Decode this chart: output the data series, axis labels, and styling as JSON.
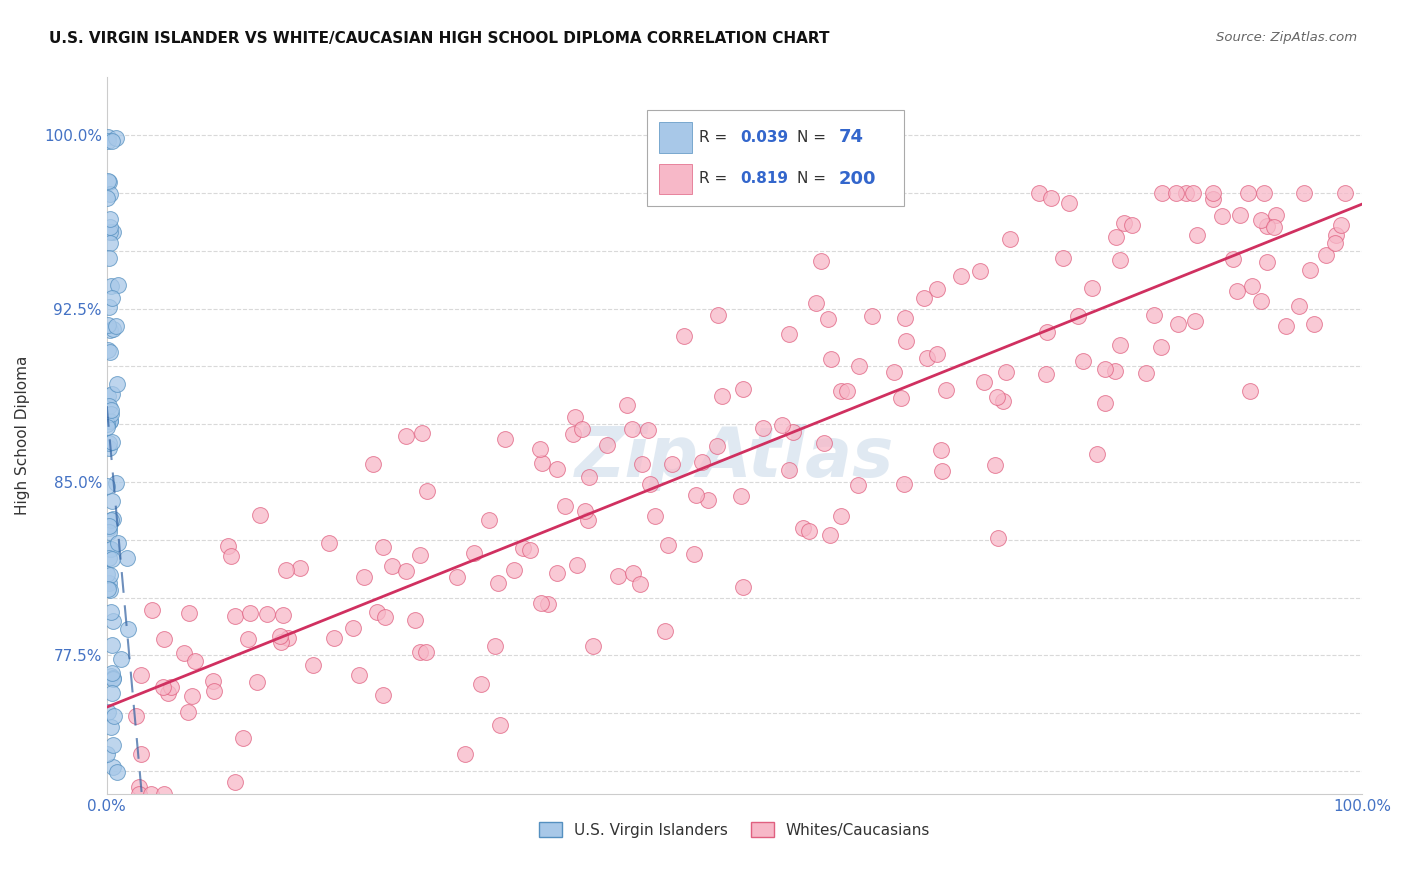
{
  "title": "U.S. VIRGIN ISLANDER VS WHITE/CAUCASIAN HIGH SCHOOL DIPLOMA CORRELATION CHART",
  "source": "Source: ZipAtlas.com",
  "ylabel": "High School Diploma",
  "yticks": [
    0.725,
    0.75,
    0.775,
    0.8,
    0.825,
    0.85,
    0.875,
    0.9,
    0.925,
    0.95,
    0.975,
    1.0
  ],
  "ytick_labels": [
    "",
    "",
    "77.5%",
    "",
    "",
    "85.0%",
    "",
    "",
    "92.5%",
    "",
    "",
    "100.0%"
  ],
  "xlim": [
    0.0,
    1.0
  ],
  "ylim": [
    0.715,
    1.025
  ],
  "R_blue": 0.039,
  "N_blue": 74,
  "R_pink": 0.819,
  "N_pink": 200,
  "blue_color": "#a8c8e8",
  "blue_edge": "#5590c0",
  "pink_color": "#f7b8c8",
  "pink_edge": "#e06080",
  "blue_line_color": "#3060a0",
  "pink_line_color": "#d03060",
  "watermark_color": "#c8d8e8",
  "legend_label_blue": "U.S. Virgin Islanders",
  "legend_label_pink": "Whites/Caucasians"
}
